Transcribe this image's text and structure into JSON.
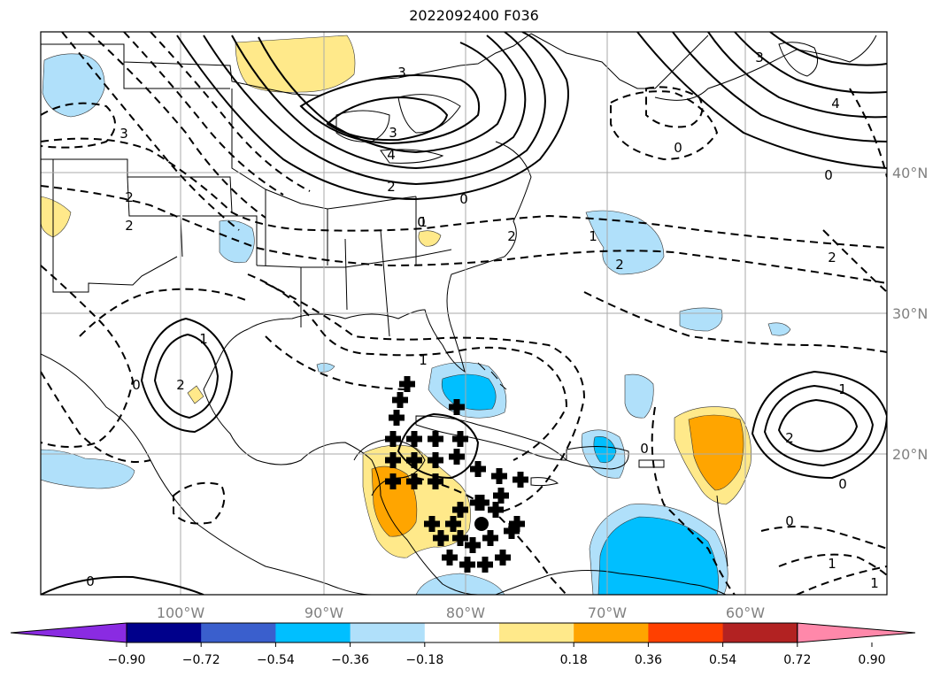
{
  "title": "2022092400 F036",
  "lat_labels": [
    "40°N",
    "30°N",
    "20°N"
  ],
  "lon_labels": [
    "100°W",
    "90°W",
    "80°W",
    "70°W",
    "60°W"
  ],
  "contour_labels": [
    "3",
    "3",
    "4",
    "2",
    "3",
    "0",
    "2",
    "2",
    "1",
    "2",
    "0",
    "3",
    "4",
    "0",
    "2",
    "1",
    "2",
    "1",
    "1",
    "0",
    "0",
    "2",
    "1",
    "0",
    "0",
    "0",
    "1",
    "1",
    "2",
    "0"
  ],
  "colorbar": {
    "colors": [
      "#8a2be2",
      "#00008b",
      "#3a5fcd",
      "#00bfff",
      "#b0e0fa",
      "#ffffff",
      "#ffe98a",
      "#ffa500",
      "#ff4000",
      "#b22222",
      "#ff88aa"
    ],
    "tick_labels": [
      "−0.90",
      "−0.72",
      "−0.54",
      "−0.36",
      "−0.18",
      "0.18",
      "0.36",
      "0.54",
      "0.72",
      "0.90"
    ]
  }
}
